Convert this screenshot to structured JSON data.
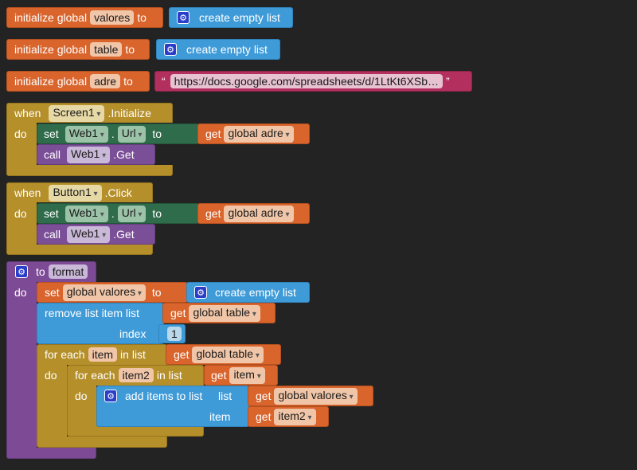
{
  "globals": [
    {
      "prefix": "initialize global",
      "name": "valores",
      "to": "to",
      "value": "create empty list"
    },
    {
      "prefix": "initialize global",
      "name": "table",
      "to": "to",
      "value": "create empty list"
    },
    {
      "prefix": "initialize global",
      "name": "adre",
      "to": "to",
      "quote_open": "“",
      "value": "https://docs.google.com/spreadsheets/d/1LtKt6XSb…",
      "quote_close": "”"
    }
  ],
  "event1": {
    "when": "when",
    "component": "Screen1",
    "event": ".Initialize",
    "do": "do",
    "set": "set",
    "set_component": "Web1",
    "dot": ".",
    "property": "Url",
    "to": "to",
    "get": "get",
    "get_var": "global adre",
    "call": "call",
    "call_component": "Web1",
    "method": ".Get"
  },
  "event2": {
    "when": "when",
    "component": "Button1",
    "event": ".Click",
    "do": "do",
    "set": "set",
    "set_component": "Web1",
    "dot": ".",
    "property": "Url",
    "to": "to",
    "get": "get",
    "get_var": "global adre",
    "call": "call",
    "call_component": "Web1",
    "method": ".Get"
  },
  "procedure": {
    "to": "to",
    "name": "format",
    "do": "do",
    "set": "set",
    "set_var": "global valores",
    "set_to": "to",
    "set_value": "create empty list",
    "remove_label": "remove list item  list",
    "remove_get": "get",
    "remove_var": "global table",
    "index_label": "index",
    "index_value": "1",
    "foreach1": "for each",
    "foreach1_var": "item",
    "foreach1_in": "in list",
    "foreach1_get": "get",
    "foreach1_list": "global table",
    "foreach1_do": "do",
    "foreach2": "for each",
    "foreach2_var": "item2",
    "foreach2_in": "in list",
    "foreach2_get": "get",
    "foreach2_list": "item",
    "foreach2_do": "do",
    "add_label": "add items to list",
    "add_list_label": "list",
    "add_get1": "get",
    "add_var1": "global valores",
    "add_item_label": "item",
    "add_get2": "get",
    "add_var2": "item2"
  }
}
